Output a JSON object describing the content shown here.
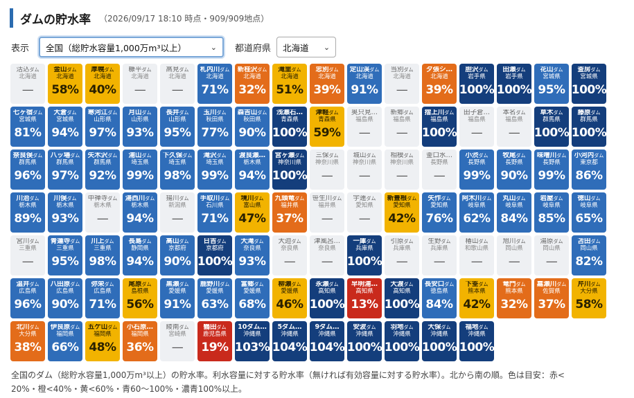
{
  "header": {
    "title": "ダムの貯水率",
    "subtitle": "（2026/09/17 18:10 時点・909/909地点）"
  },
  "controls": {
    "display_label": "表示",
    "display_value": "全国（総貯水容量1,000万m³以上）",
    "pref_label": "都道府県",
    "pref_value": "北海道"
  },
  "colors": {
    "gray": "#eef0f3",
    "yellow": "#f2b300",
    "orange": "#e36c1a",
    "red": "#c92a1c",
    "blue": "#2f6db9",
    "navy": "#143e7c"
  },
  "dams": [
    {
      "name": "活込",
      "suffix": "ダム",
      "pref": "北海道",
      "pct": "—",
      "color": "gray"
    },
    {
      "name": "金山",
      "suffix": "ダム",
      "pref": "北海道",
      "pct": "58%",
      "color": "yellow"
    },
    {
      "name": "厚幌",
      "suffix": "ダム",
      "pref": "北海道",
      "pct": "40%",
      "color": "yellow"
    },
    {
      "name": "糠平",
      "suffix": "ダム",
      "pref": "北海道",
      "pct": "—",
      "color": "gray"
    },
    {
      "name": "高見",
      "suffix": "ダム",
      "pref": "北海道",
      "pct": "—",
      "color": "gray"
    },
    {
      "name": "札内川",
      "suffix": "ダム",
      "pref": "北海道",
      "pct": "71%",
      "color": "blue"
    },
    {
      "name": "新桂沢",
      "suffix": "ダム",
      "pref": "北海道",
      "pct": "32%",
      "color": "orange"
    },
    {
      "name": "滝里",
      "suffix": "ダム",
      "pref": "北海道",
      "pct": "51%",
      "color": "yellow"
    },
    {
      "name": "忠別",
      "suffix": "ダム",
      "pref": "北海道",
      "pct": "39%",
      "color": "orange"
    },
    {
      "name": "定山渓",
      "suffix": "ダム",
      "pref": "北海道",
      "pct": "91%",
      "color": "blue"
    },
    {
      "name": "当別",
      "suffix": "ダム",
      "pref": "北海道",
      "pct": "—",
      "color": "gray"
    },
    {
      "name": "夕張シ…",
      "suffix": "",
      "pref": "北海道",
      "pct": "39%",
      "color": "orange"
    },
    {
      "name": "胆沢",
      "suffix": "ダム",
      "pref": "岩手県",
      "pct": "100%",
      "color": "navy"
    },
    {
      "name": "田瀬",
      "suffix": "ダム",
      "pref": "岩手県",
      "pct": "100%",
      "color": "navy"
    },
    {
      "name": "花山",
      "suffix": "ダム",
      "pref": "宮城県",
      "pct": "95%",
      "color": "blue"
    },
    {
      "name": "釜房",
      "suffix": "ダム",
      "pref": "宮城県",
      "pct": "100%",
      "color": "navy"
    },
    {
      "name": "七ヶ宿",
      "suffix": "ダム",
      "pref": "宮城県",
      "pct": "81%",
      "color": "blue"
    },
    {
      "name": "大倉",
      "suffix": "ダム",
      "pref": "宮城県",
      "pct": "94%",
      "color": "blue"
    },
    {
      "name": "寒河江",
      "suffix": "ダム",
      "pref": "山形県",
      "pct": "97%",
      "color": "blue"
    },
    {
      "name": "月山",
      "suffix": "ダム",
      "pref": "山形県",
      "pct": "93%",
      "color": "blue"
    },
    {
      "name": "長井",
      "suffix": "ダム",
      "pref": "山形県",
      "pct": "95%",
      "color": "blue"
    },
    {
      "name": "玉川",
      "suffix": "ダム",
      "pref": "秋田県",
      "pct": "77%",
      "color": "blue"
    },
    {
      "name": "森吉山",
      "suffix": "ダム",
      "pref": "秋田県",
      "pct": "90%",
      "color": "blue"
    },
    {
      "name": "浅瀬石…",
      "suffix": "",
      "pref": "青森県",
      "pct": "100%",
      "color": "navy"
    },
    {
      "name": "津軽",
      "suffix": "ダム",
      "pref": "青森県",
      "pct": "59%",
      "color": "yellow"
    },
    {
      "name": "奥只見…",
      "suffix": "",
      "pref": "福島県",
      "pct": "—",
      "color": "gray"
    },
    {
      "name": "新郷",
      "suffix": "ダム",
      "pref": "福島県",
      "pct": "—",
      "color": "gray"
    },
    {
      "name": "摺上川",
      "suffix": "ダム",
      "pref": "福島県",
      "pct": "100%",
      "color": "navy"
    },
    {
      "name": "田子倉…",
      "suffix": "",
      "pref": "福島県",
      "pct": "—",
      "color": "gray"
    },
    {
      "name": "本名",
      "suffix": "ダム",
      "pref": "福島県",
      "pct": "—",
      "color": "gray"
    },
    {
      "name": "草木",
      "suffix": "ダム",
      "pref": "群馬県",
      "pct": "100%",
      "color": "navy"
    },
    {
      "name": "藤原",
      "suffix": "ダム",
      "pref": "群馬県",
      "pct": "100%",
      "color": "navy"
    },
    {
      "name": "奈良俣",
      "suffix": "ダム",
      "pref": "群馬県",
      "pct": "96%",
      "color": "blue"
    },
    {
      "name": "八ッ場",
      "suffix": "ダム",
      "pref": "群馬県",
      "pct": "97%",
      "color": "blue"
    },
    {
      "name": "矢木沢",
      "suffix": "ダム",
      "pref": "群馬県",
      "pct": "92%",
      "color": "blue"
    },
    {
      "name": "浦山",
      "suffix": "ダム",
      "pref": "埼玉県",
      "pct": "99%",
      "color": "blue"
    },
    {
      "name": "下久保",
      "suffix": "ダム",
      "pref": "埼玉県",
      "pct": "98%",
      "color": "blue"
    },
    {
      "name": "滝沢",
      "suffix": "ダム",
      "pref": "埼玉県",
      "pct": "99%",
      "color": "blue"
    },
    {
      "name": "渡良瀬…",
      "suffix": "",
      "pref": "栃木県",
      "pct": "94%",
      "color": "blue"
    },
    {
      "name": "宮ヶ瀬",
      "suffix": "ダム",
      "pref": "神奈川県",
      "pct": "100%",
      "color": "navy"
    },
    {
      "name": "三保",
      "suffix": "ダム",
      "pref": "神奈川県",
      "pct": "—",
      "color": "gray"
    },
    {
      "name": "城山",
      "suffix": "ダム",
      "pref": "神奈川県",
      "pct": "—",
      "color": "gray"
    },
    {
      "name": "相模",
      "suffix": "ダム",
      "pref": "神奈川県",
      "pct": "—",
      "color": "gray"
    },
    {
      "name": "釜口水…",
      "suffix": "",
      "pref": "長野県",
      "pct": "—",
      "color": "gray"
    },
    {
      "name": "小渋",
      "suffix": "ダム",
      "pref": "長野県",
      "pct": "99%",
      "color": "blue"
    },
    {
      "name": "牧尾",
      "suffix": "ダム",
      "pref": "長野県",
      "pct": "90%",
      "color": "blue"
    },
    {
      "name": "味噌川",
      "suffix": "ダム",
      "pref": "長野県",
      "pct": "99%",
      "color": "blue"
    },
    {
      "name": "小河内",
      "suffix": "ダム",
      "pref": "東京都",
      "pct": "86%",
      "color": "blue"
    },
    {
      "name": "川治",
      "suffix": "ダム",
      "pref": "栃木県",
      "pct": "89%",
      "color": "blue"
    },
    {
      "name": "川俣",
      "suffix": "ダム",
      "pref": "栃木県",
      "pct": "93%",
      "color": "blue"
    },
    {
      "name": "中禅寺",
      "suffix": "ダム",
      "pref": "栃木県",
      "pct": "—",
      "color": "gray"
    },
    {
      "name": "湯西川",
      "suffix": "ダム",
      "pref": "栃木県",
      "pct": "94%",
      "color": "blue"
    },
    {
      "name": "揚川",
      "suffix": "ダム",
      "pref": "新潟県",
      "pct": "—",
      "color": "gray"
    },
    {
      "name": "手取川",
      "suffix": "ダム",
      "pref": "石川県",
      "pct": "71%",
      "color": "blue"
    },
    {
      "name": "境川",
      "suffix": "ダム",
      "pref": "富山県",
      "pct": "47%",
      "color": "yellow"
    },
    {
      "name": "九頭竜",
      "suffix": "ダム",
      "pref": "福井県",
      "pct": "37%",
      "color": "orange"
    },
    {
      "name": "笹生川",
      "suffix": "ダム",
      "pref": "福井県",
      "pct": "—",
      "color": "gray"
    },
    {
      "name": "宇連",
      "suffix": "ダム",
      "pref": "愛知県",
      "pct": "—",
      "color": "gray"
    },
    {
      "name": "新豊根",
      "suffix": "ダム",
      "pref": "愛知県",
      "pct": "42%",
      "color": "yellow"
    },
    {
      "name": "矢作",
      "suffix": "ダム",
      "pref": "愛知県",
      "pct": "76%",
      "color": "blue"
    },
    {
      "name": "阿木川",
      "suffix": "ダム",
      "pref": "岐阜県",
      "pct": "62%",
      "color": "blue"
    },
    {
      "name": "丸山",
      "suffix": "ダム",
      "pref": "岐阜県",
      "pct": "84%",
      "color": "blue"
    },
    {
      "name": "岩屋",
      "suffix": "ダム",
      "pref": "岐阜県",
      "pct": "85%",
      "color": "blue"
    },
    {
      "name": "徳山",
      "suffix": "ダム",
      "pref": "岐阜県",
      "pct": "65%",
      "color": "blue"
    },
    {
      "name": "宮川",
      "suffix": "ダム",
      "pref": "三重県",
      "pct": "—",
      "color": "gray"
    },
    {
      "name": "青蓮寺",
      "suffix": "ダム",
      "pref": "三重県",
      "pct": "95%",
      "color": "blue"
    },
    {
      "name": "川上",
      "suffix": "ダム",
      "pref": "三重県",
      "pct": "98%",
      "color": "blue"
    },
    {
      "name": "長島",
      "suffix": "ダム",
      "pref": "静岡県",
      "pct": "94%",
      "color": "blue"
    },
    {
      "name": "高山",
      "suffix": "ダム",
      "pref": "京都府",
      "pct": "90%",
      "color": "blue"
    },
    {
      "name": "日吉",
      "suffix": "ダム",
      "pref": "京都府",
      "pct": "100%",
      "color": "navy"
    },
    {
      "name": "大滝",
      "suffix": "ダム",
      "pref": "奈良県",
      "pct": "93%",
      "color": "blue"
    },
    {
      "name": "大迫",
      "suffix": "ダム",
      "pref": "奈良県",
      "pct": "—",
      "color": "gray"
    },
    {
      "name": "津風呂…",
      "suffix": "",
      "pref": "奈良県",
      "pct": "—",
      "color": "gray"
    },
    {
      "name": "一庫",
      "suffix": "ダム",
      "pref": "兵庫県",
      "pct": "100%",
      "color": "navy"
    },
    {
      "name": "引原",
      "suffix": "ダム",
      "pref": "兵庫県",
      "pct": "—",
      "color": "gray"
    },
    {
      "name": "生野",
      "suffix": "ダム",
      "pref": "兵庫県",
      "pct": "—",
      "color": "gray"
    },
    {
      "name": "椿山",
      "suffix": "ダム",
      "pref": "和歌山県",
      "pct": "—",
      "color": "gray"
    },
    {
      "name": "旭川",
      "suffix": "ダム",
      "pref": "岡山県",
      "pct": "—",
      "color": "gray"
    },
    {
      "name": "湯原",
      "suffix": "ダム",
      "pref": "岡山県",
      "pct": "—",
      "color": "gray"
    },
    {
      "name": "苫田",
      "suffix": "ダム",
      "pref": "岡山県",
      "pct": "82%",
      "color": "blue"
    },
    {
      "name": "温井",
      "suffix": "ダム",
      "pref": "広島県",
      "pct": "96%",
      "color": "blue"
    },
    {
      "name": "八田原",
      "suffix": "ダム",
      "pref": "広島県",
      "pct": "90%",
      "color": "blue"
    },
    {
      "name": "弥栄",
      "suffix": "ダム",
      "pref": "広島県",
      "pct": "71%",
      "color": "blue"
    },
    {
      "name": "尾原",
      "suffix": "ダム",
      "pref": "島根県",
      "pct": "56%",
      "color": "yellow"
    },
    {
      "name": "黒瀬",
      "suffix": "ダム",
      "pref": "愛媛県",
      "pct": "91%",
      "color": "blue"
    },
    {
      "name": "鹿野川",
      "suffix": "ダム",
      "pref": "愛媛県",
      "pct": "63%",
      "color": "blue"
    },
    {
      "name": "富郷",
      "suffix": "ダム",
      "pref": "愛媛県",
      "pct": "68%",
      "color": "blue"
    },
    {
      "name": "柳瀬",
      "suffix": "ダム",
      "pref": "愛媛県",
      "pct": "46%",
      "color": "yellow"
    },
    {
      "name": "永瀬",
      "suffix": "ダム",
      "pref": "高知県",
      "pct": "100%",
      "color": "navy"
    },
    {
      "name": "早明浦…",
      "suffix": "",
      "pref": "高知県",
      "pct": "13%",
      "color": "red"
    },
    {
      "name": "大渡",
      "suffix": "ダム",
      "pref": "高知県",
      "pct": "100%",
      "color": "navy"
    },
    {
      "name": "長安口",
      "suffix": "ダム",
      "pref": "徳島県",
      "pct": "84%",
      "color": "blue"
    },
    {
      "name": "下筌",
      "suffix": "ダム",
      "pref": "熊本県",
      "pct": "42%",
      "color": "yellow"
    },
    {
      "name": "竜門",
      "suffix": "ダム",
      "pref": "熊本県",
      "pct": "32%",
      "color": "orange"
    },
    {
      "name": "嘉瀬川",
      "suffix": "ダム",
      "pref": "佐賀県",
      "pct": "37%",
      "color": "orange"
    },
    {
      "name": "芹川",
      "suffix": "ダム",
      "pref": "大分県",
      "pct": "58%",
      "color": "yellow"
    },
    {
      "name": "北川",
      "suffix": "ダム",
      "pref": "大分県",
      "pct": "38%",
      "color": "orange"
    },
    {
      "name": "伊良原",
      "suffix": "ダム",
      "pref": "福岡県",
      "pct": "66%",
      "color": "blue"
    },
    {
      "name": "五ケ山",
      "suffix": "ダム",
      "pref": "福岡県",
      "pct": "48%",
      "color": "yellow"
    },
    {
      "name": "小石原…",
      "suffix": "",
      "pref": "福岡県",
      "pct": "36%",
      "color": "orange"
    },
    {
      "name": "綾南",
      "suffix": "ダム",
      "pref": "宮崎県",
      "pct": "—",
      "color": "gray"
    },
    {
      "name": "鶴田",
      "suffix": "ダム",
      "pref": "鹿児島県",
      "pct": "19%",
      "color": "red"
    },
    {
      "name": "10ダム…",
      "suffix": "",
      "pref": "沖縄県",
      "pct": "103%",
      "color": "navy"
    },
    {
      "name": "5ダム…",
      "suffix": "",
      "pref": "沖縄県",
      "pct": "104%",
      "color": "navy"
    },
    {
      "name": "9ダム…",
      "suffix": "",
      "pref": "沖縄県",
      "pct": "104%",
      "color": "navy"
    },
    {
      "name": "安波",
      "suffix": "ダム",
      "pref": "沖縄県",
      "pct": "100%",
      "color": "navy"
    },
    {
      "name": "羽地",
      "suffix": "ダム",
      "pref": "沖縄県",
      "pct": "100%",
      "color": "navy"
    },
    {
      "name": "大保",
      "suffix": "ダム",
      "pref": "沖縄県",
      "pct": "100%",
      "color": "navy"
    },
    {
      "name": "福地",
      "suffix": "ダム",
      "pref": "沖縄県",
      "pct": "100%",
      "color": "navy"
    }
  ],
  "footer": {
    "line1": "全国のダム（総貯水容量1,000万m³以上）の貯水率。利水容量に対する貯水率（無ければ有効容量に対する貯水率）。北から南の順。色は目安：赤<",
    "line2": "20%・橙<40%・黄<60%・青60〜100%・濃青100%以上。"
  }
}
